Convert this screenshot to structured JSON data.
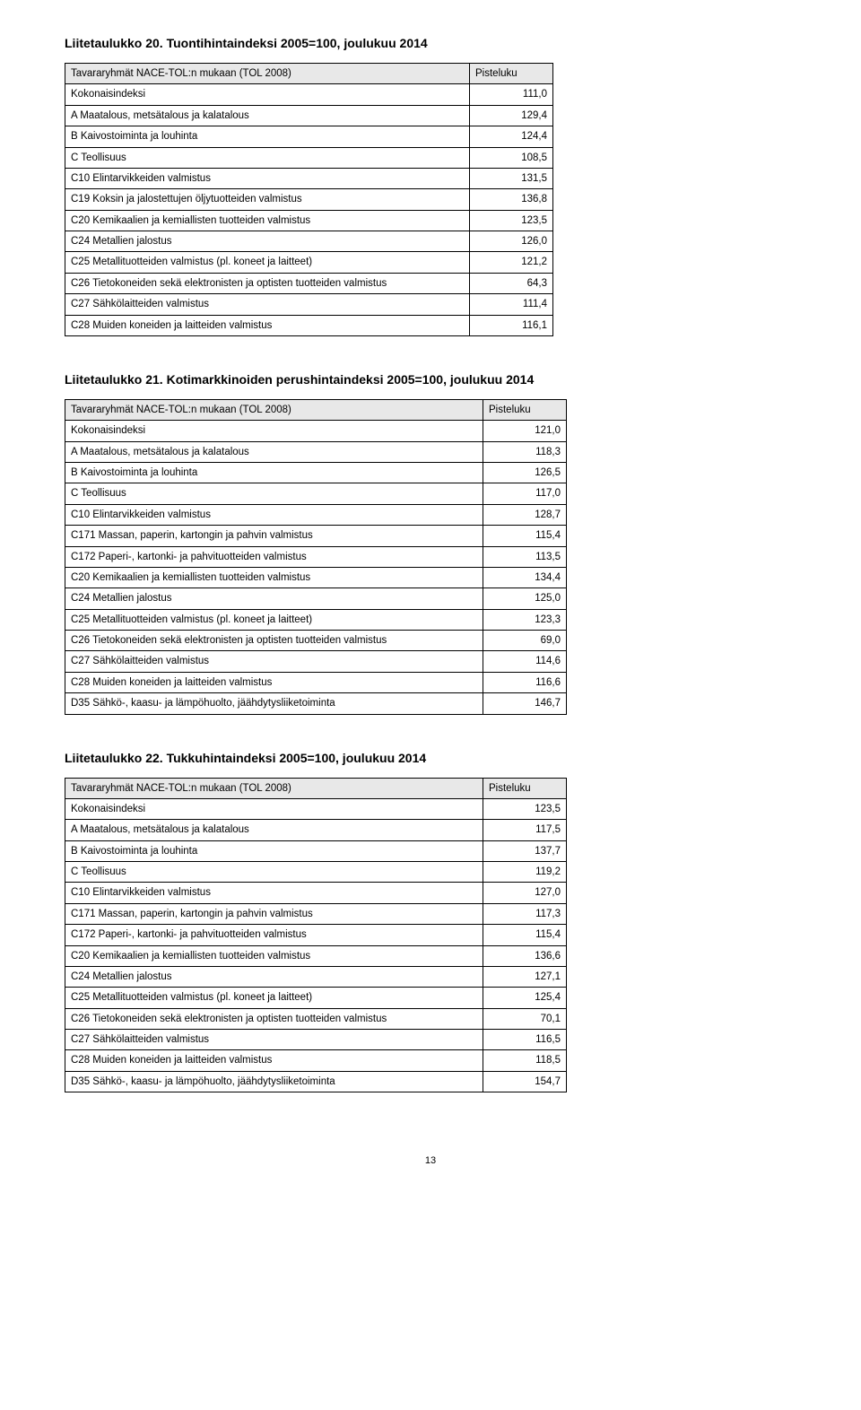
{
  "tables": [
    {
      "title": "Liitetaulukko 20. Tuontihintaindeksi 2005=100, joulukuu 2014",
      "header_left": "Tavararyhmät NACE-TOL:n mukaan (TOL 2008)",
      "header_right": "Pisteluku",
      "rows": [
        {
          "label": "Kokonaisindeksi",
          "value": "111,0"
        },
        {
          "label": "A Maatalous, metsätalous ja kalatalous",
          "value": "129,4"
        },
        {
          "label": "B Kaivostoiminta ja louhinta",
          "value": "124,4"
        },
        {
          "label": "C Teollisuus",
          "value": "108,5"
        },
        {
          "label": "C10 Elintarvikkeiden valmistus",
          "value": "131,5"
        },
        {
          "label": "C19 Koksin ja jalostettujen öljytuotteiden valmistus",
          "value": "136,8"
        },
        {
          "label": "C20 Kemikaalien ja kemiallisten tuotteiden valmistus",
          "value": "123,5"
        },
        {
          "label": "C24 Metallien jalostus",
          "value": "126,0"
        },
        {
          "label": "C25 Metallituotteiden valmistus (pl. koneet ja laitteet)",
          "value": "121,2"
        },
        {
          "label": "C26 Tietokoneiden sekä elektronisten ja optisten tuotteiden valmistus",
          "value": "64,3"
        },
        {
          "label": "C27 Sähkölaitteiden valmistus",
          "value": "111,4"
        },
        {
          "label": "C28 Muiden koneiden ja laitteiden valmistus",
          "value": "116,1"
        }
      ]
    },
    {
      "title": "Liitetaulukko 21. Kotimarkkinoiden perushintaindeksi 2005=100, joulukuu 2014",
      "header_left": "Tavararyhmät NACE-TOL:n mukaan (TOL 2008)",
      "header_right": "Pisteluku",
      "rows": [
        {
          "label": "Kokonaisindeksi",
          "value": "121,0"
        },
        {
          "label": "A Maatalous, metsätalous ja kalatalous",
          "value": "118,3"
        },
        {
          "label": "B Kaivostoiminta ja louhinta",
          "value": "126,5"
        },
        {
          "label": "C Teollisuus",
          "value": "117,0"
        },
        {
          "label": "C10 Elintarvikkeiden valmistus",
          "value": "128,7"
        },
        {
          "label": "C171 Massan, paperin, kartongin ja pahvin valmistus",
          "value": "115,4"
        },
        {
          "label": "C172 Paperi-, kartonki- ja pahvituotteiden valmistus",
          "value": "113,5"
        },
        {
          "label": "C20 Kemikaalien ja kemiallisten tuotteiden valmistus",
          "value": "134,4"
        },
        {
          "label": "C24 Metallien jalostus",
          "value": "125,0"
        },
        {
          "label": "C25 Metallituotteiden valmistus (pl. koneet ja laitteet)",
          "value": "123,3"
        },
        {
          "label": "C26 Tietokoneiden sekä elektronisten ja optisten tuotteiden valmistus",
          "value": "69,0"
        },
        {
          "label": "C27 Sähkölaitteiden valmistus",
          "value": "114,6"
        },
        {
          "label": "C28 Muiden koneiden ja laitteiden valmistus",
          "value": "116,6"
        },
        {
          "label": "D35 Sähkö-, kaasu- ja lämpöhuolto, jäähdytysliiketoiminta",
          "value": "146,7"
        }
      ]
    },
    {
      "title": "Liitetaulukko 22. Tukkuhintaindeksi 2005=100, joulukuu 2014",
      "header_left": "Tavararyhmät NACE-TOL:n mukaan (TOL 2008)",
      "header_right": "Pisteluku",
      "rows": [
        {
          "label": "Kokonaisindeksi",
          "value": "123,5"
        },
        {
          "label": "A Maatalous, metsätalous ja kalatalous",
          "value": "117,5"
        },
        {
          "label": "B Kaivostoiminta ja louhinta",
          "value": "137,7"
        },
        {
          "label": "C Teollisuus",
          "value": "119,2"
        },
        {
          "label": "C10 Elintarvikkeiden valmistus",
          "value": "127,0"
        },
        {
          "label": "C171 Massan, paperin, kartongin ja pahvin valmistus",
          "value": "117,3"
        },
        {
          "label": "C172 Paperi-, kartonki- ja pahvituotteiden valmistus",
          "value": "115,4"
        },
        {
          "label": "C20 Kemikaalien ja kemiallisten tuotteiden valmistus",
          "value": "136,6"
        },
        {
          "label": "C24 Metallien jalostus",
          "value": "127,1"
        },
        {
          "label": "C25 Metallituotteiden valmistus (pl. koneet ja laitteet)",
          "value": "125,4"
        },
        {
          "label": "C26 Tietokoneiden sekä elektronisten ja optisten tuotteiden valmistus",
          "value": "70,1"
        },
        {
          "label": "C27 Sähkölaitteiden valmistus",
          "value": "116,5"
        },
        {
          "label": "C28 Muiden koneiden ja laitteiden valmistus",
          "value": "118,5"
        },
        {
          "label": "D35 Sähkö-, kaasu- ja lämpöhuolto, jäähdytysliiketoiminta",
          "value": "154,7"
        }
      ]
    }
  ],
  "page_number": "13"
}
